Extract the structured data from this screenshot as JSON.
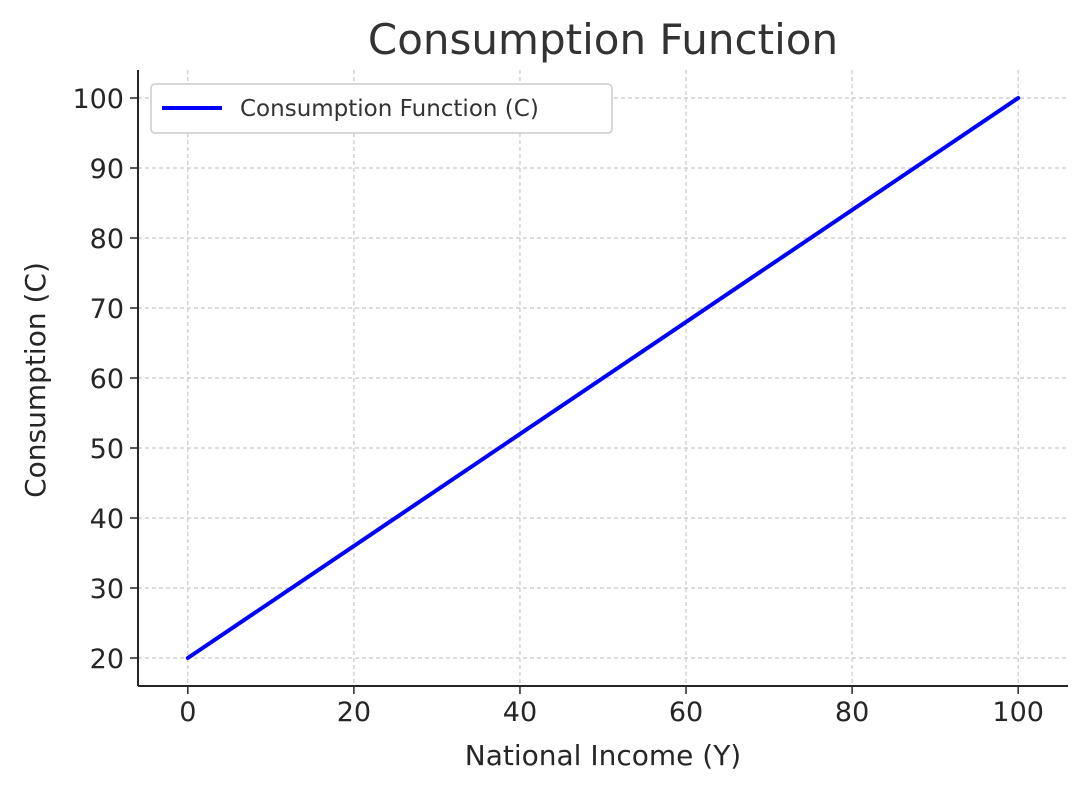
{
  "chart_data": {
    "type": "line",
    "title": "Consumption Function",
    "xlabel": "National Income (Y)",
    "ylabel": "Consumption (C)",
    "xlim": [
      -6,
      106
    ],
    "ylim": [
      16,
      104
    ],
    "xticks": [
      0,
      20,
      40,
      60,
      80,
      100
    ],
    "yticks": [
      20,
      30,
      40,
      50,
      60,
      70,
      80,
      90,
      100
    ],
    "grid": true,
    "legend": "top-left",
    "series": [
      {
        "name": "Consumption Function (C)",
        "color": "#0000ff",
        "x": [
          0,
          100
        ],
        "y": [
          20,
          100
        ]
      }
    ]
  },
  "colors": {
    "axis": "#262626",
    "grid": "#c8c8c8",
    "legend_border": "#cccccc"
  }
}
